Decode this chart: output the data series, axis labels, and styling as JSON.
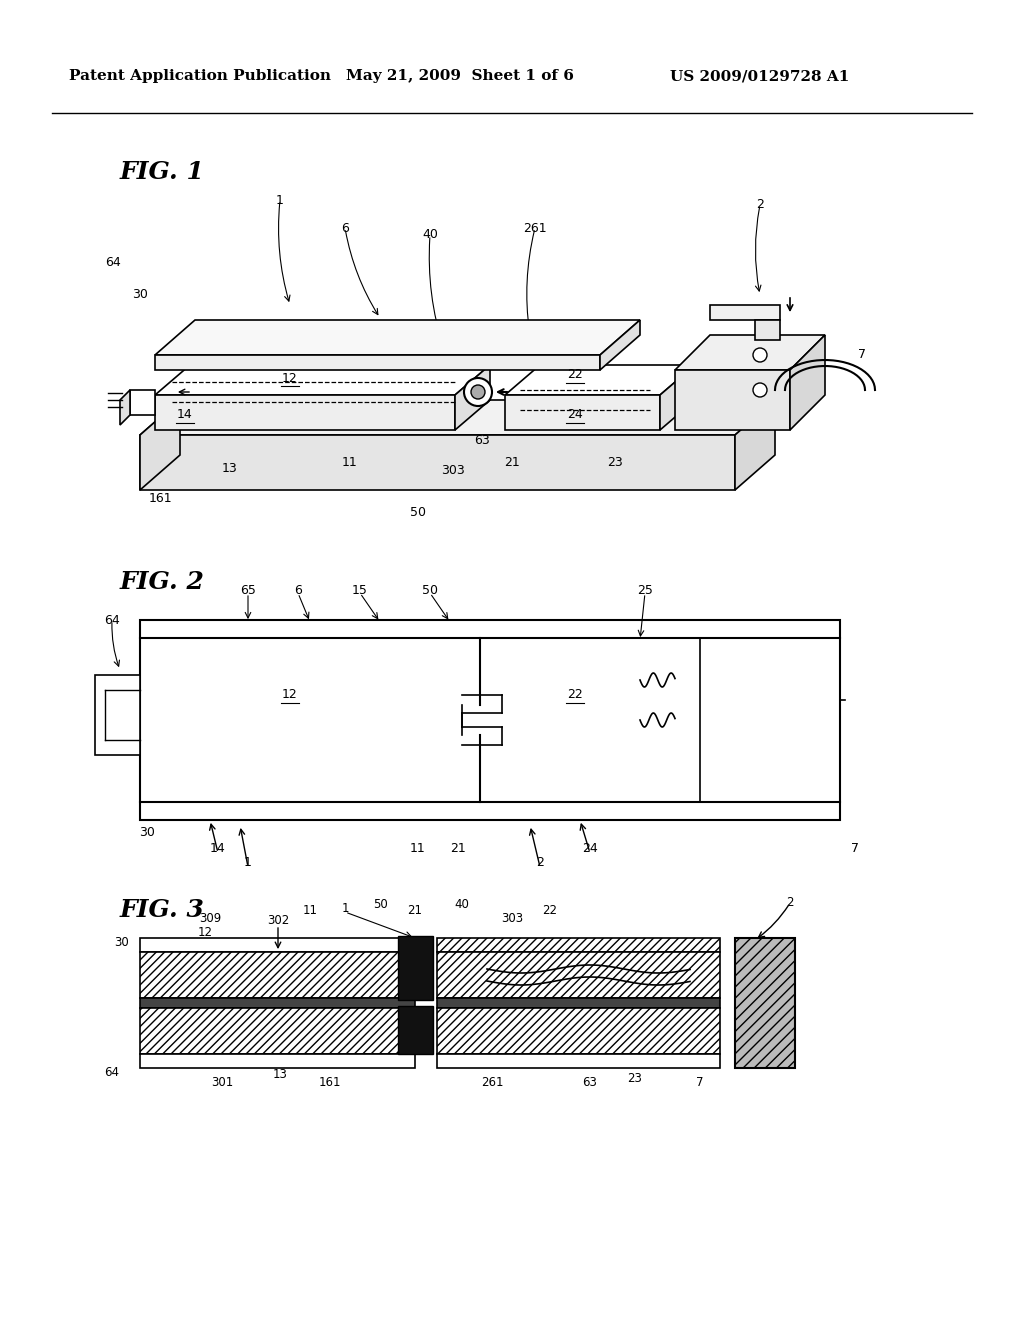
{
  "header_left": "Patent Application Publication",
  "header_mid": "May 21, 2009  Sheet 1 of 6",
  "header_right": "US 2009/0129728 A1",
  "bg_color": "#ffffff"
}
